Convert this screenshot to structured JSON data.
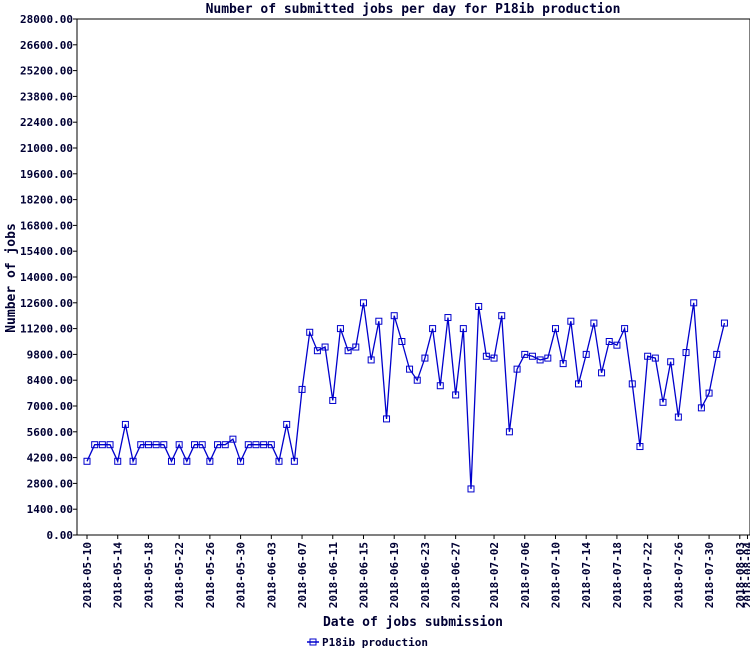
{
  "chart_data": {
    "type": "line",
    "title": "Number of submitted jobs per day for P18ib production",
    "xlabel": "Date of jobs submission",
    "ylabel": "Number of jobs",
    "ylim": [
      0,
      28000
    ],
    "yticks": [
      "0.00",
      "1400.00",
      "2800.00",
      "4200.00",
      "5600.00",
      "7000.00",
      "8400.00",
      "9800.00",
      "11200.00",
      "12600.00",
      "14000.00",
      "15400.00",
      "16800.00",
      "18200.00",
      "19600.00",
      "21000.00",
      "22400.00",
      "23800.00",
      "25200.00",
      "26600.00",
      "28000.00"
    ],
    "xticks": [
      "2018-05-10",
      "2018-05-14",
      "2018-05-18",
      "2018-05-22",
      "2018-05-26",
      "2018-05-30",
      "2018-06-03",
      "2018-06-07",
      "2018-06-11",
      "2018-06-15",
      "2018-06-19",
      "2018-06-23",
      "2018-06-27",
      "2018-07-02",
      "2018-07-06",
      "2018-07-10",
      "2018-07-14",
      "2018-07-18",
      "2018-07-22",
      "2018-07-26",
      "2018-07-30",
      "2018-08-03",
      "2018-08-04"
    ],
    "grid": false,
    "legend_position": "bottom",
    "series": [
      {
        "name": "P18ib production",
        "color": "#0000cc",
        "values": [
          4000,
          4900,
          4900,
          4900,
          4000,
          6000,
          4000,
          4900,
          4900,
          4900,
          4900,
          4000,
          4900,
          4000,
          4900,
          4900,
          4000,
          4900,
          4900,
          5200,
          4000,
          4900,
          4900,
          4900,
          4900,
          4000,
          6000,
          4000,
          7900,
          11000,
          10000,
          10200,
          7300,
          11200,
          10000,
          10200,
          12600,
          9500,
          11600,
          6300,
          11900,
          10500,
          9000,
          8400,
          9600,
          11200,
          8100,
          11800,
          7600,
          11200,
          2500,
          12400,
          9700,
          9600,
          11900,
          5600,
          9000,
          9800,
          9700,
          9500,
          9600,
          11200,
          9300,
          11600,
          8200,
          9800,
          11500,
          8800,
          10500,
          10300,
          11200,
          8200,
          4800,
          9700,
          9600,
          7200,
          9400,
          6400,
          9900,
          12600,
          6900,
          7700,
          9800,
          11500
        ]
      }
    ]
  }
}
